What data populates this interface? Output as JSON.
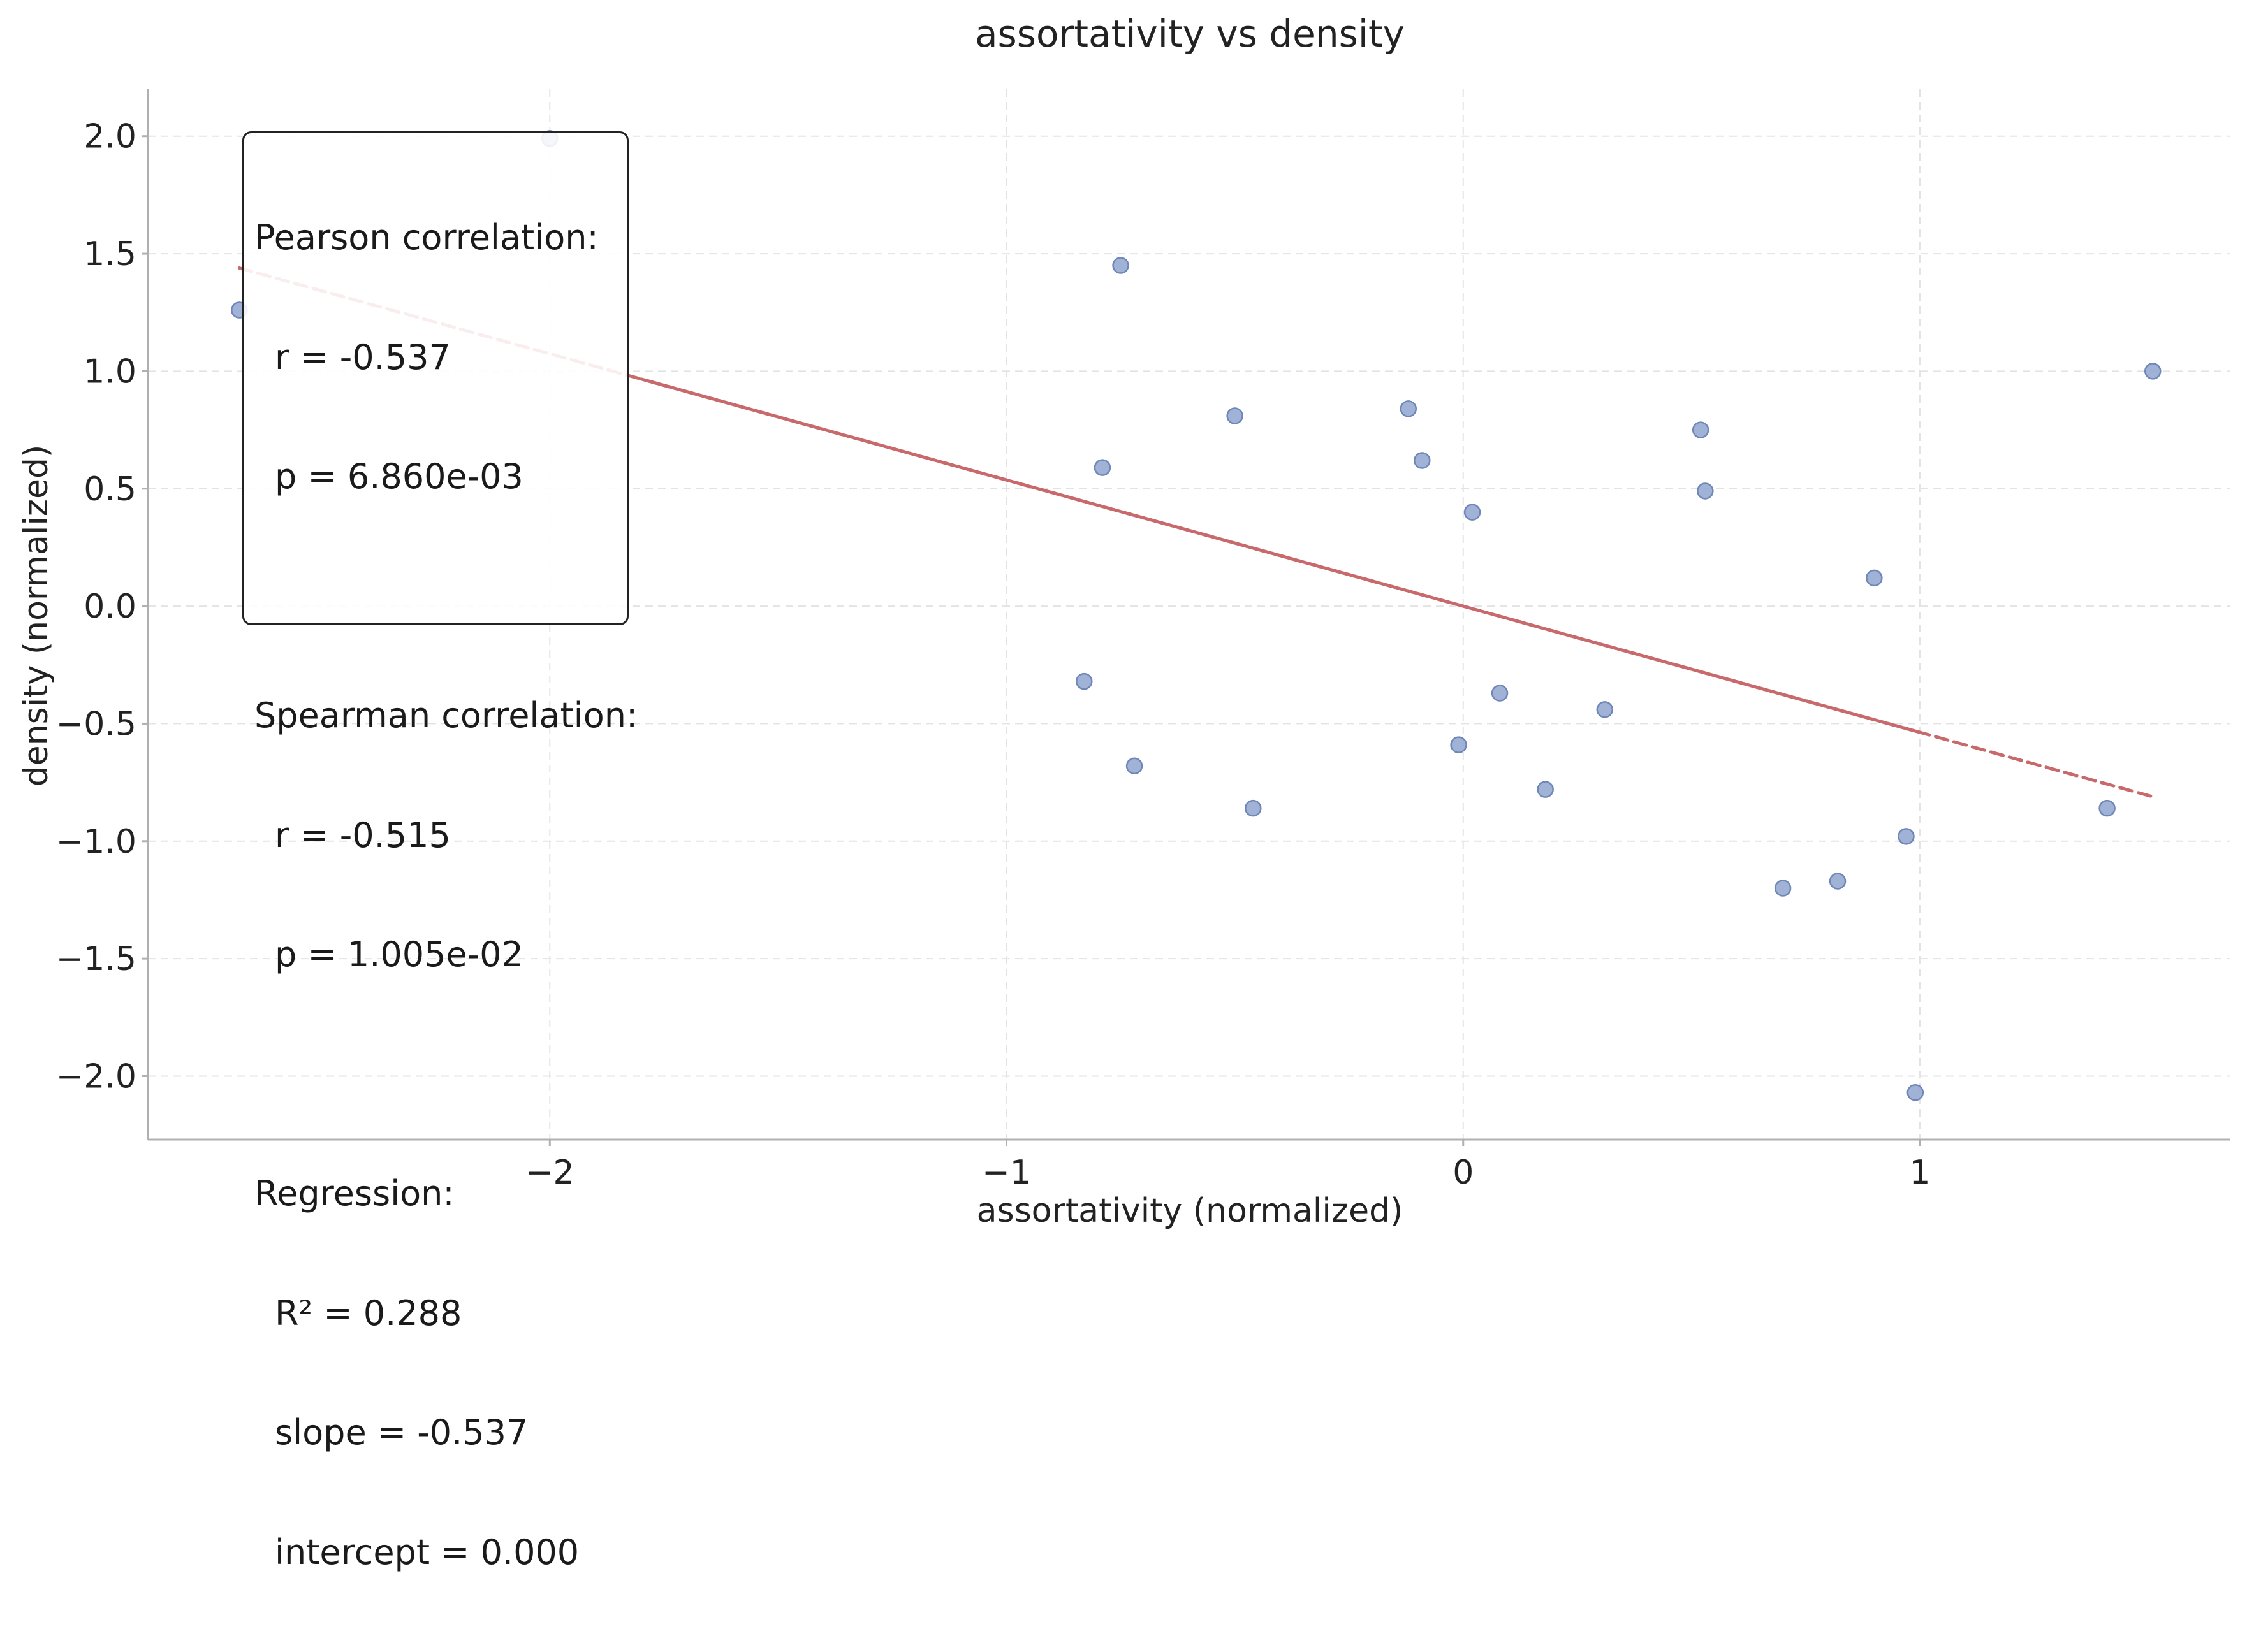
{
  "chart_data": {
    "type": "scatter",
    "title": "assortativity vs density",
    "xlabel": "assortativity (normalized)",
    "ylabel": "density (normalized)",
    "xlim": [
      -2.88,
      1.68
    ],
    "ylim": [
      -2.27,
      2.2
    ],
    "x_ticks": [
      -2,
      -1,
      0,
      1
    ],
    "x_tick_labels": [
      "−2",
      "−1",
      "0",
      "1"
    ],
    "y_ticks": [
      2.0,
      1.5,
      1.0,
      0.5,
      0.0,
      -0.5,
      -1.0,
      -1.5,
      -2.0
    ],
    "y_tick_labels": [
      "2.0",
      "1.5",
      "1.0",
      "0.5",
      "0.0",
      "−0.5",
      "−1.0",
      "−1.5",
      "−2.0"
    ],
    "grid": true,
    "points": [
      {
        "x": -2.0,
        "y": 1.99
      },
      {
        "x": -2.68,
        "y": 1.26
      },
      {
        "x": -0.75,
        "y": 1.45
      },
      {
        "x": -0.79,
        "y": 0.59
      },
      {
        "x": -0.5,
        "y": 0.81
      },
      {
        "x": -0.12,
        "y": 0.84
      },
      {
        "x": -0.09,
        "y": 0.62
      },
      {
        "x": 0.02,
        "y": 0.4
      },
      {
        "x": 0.52,
        "y": 0.75
      },
      {
        "x": 0.53,
        "y": 0.49
      },
      {
        "x": 1.51,
        "y": 1.0
      },
      {
        "x": 0.9,
        "y": 0.12
      },
      {
        "x": -0.83,
        "y": -0.32
      },
      {
        "x": 0.08,
        "y": -0.37
      },
      {
        "x": 0.31,
        "y": -0.44
      },
      {
        "x": -0.01,
        "y": -0.59
      },
      {
        "x": -0.72,
        "y": -0.68
      },
      {
        "x": 0.18,
        "y": -0.78
      },
      {
        "x": -0.46,
        "y": -0.86
      },
      {
        "x": 1.41,
        "y": -0.86
      },
      {
        "x": 0.97,
        "y": -0.98
      },
      {
        "x": 0.82,
        "y": -1.17
      },
      {
        "x": 0.7,
        "y": -1.2
      },
      {
        "x": 0.99,
        "y": -2.07
      }
    ],
    "regression": {
      "slope": -0.537,
      "intercept": 0.0,
      "x_start": -2.68,
      "x_end": 1.51,
      "solid_range": [
        -1.8,
        1.0
      ],
      "color": "#c8696b"
    },
    "point_color": "#8fa4cf",
    "point_edge_color": "#6f86b8"
  },
  "stats": {
    "pearson_heading": "Pearson correlation:",
    "pearson_r": "r = -0.537",
    "pearson_p": "p = 6.860e-03",
    "spearman_heading": "Spearman correlation:",
    "spearman_r": "r = -0.515",
    "spearman_p": "p = 1.005e-02",
    "regression_heading": "Regression:",
    "regression_r2": "R² = 0.288",
    "regression_slope": "slope = -0.537",
    "regression_intercept": "intercept = 0.000"
  }
}
